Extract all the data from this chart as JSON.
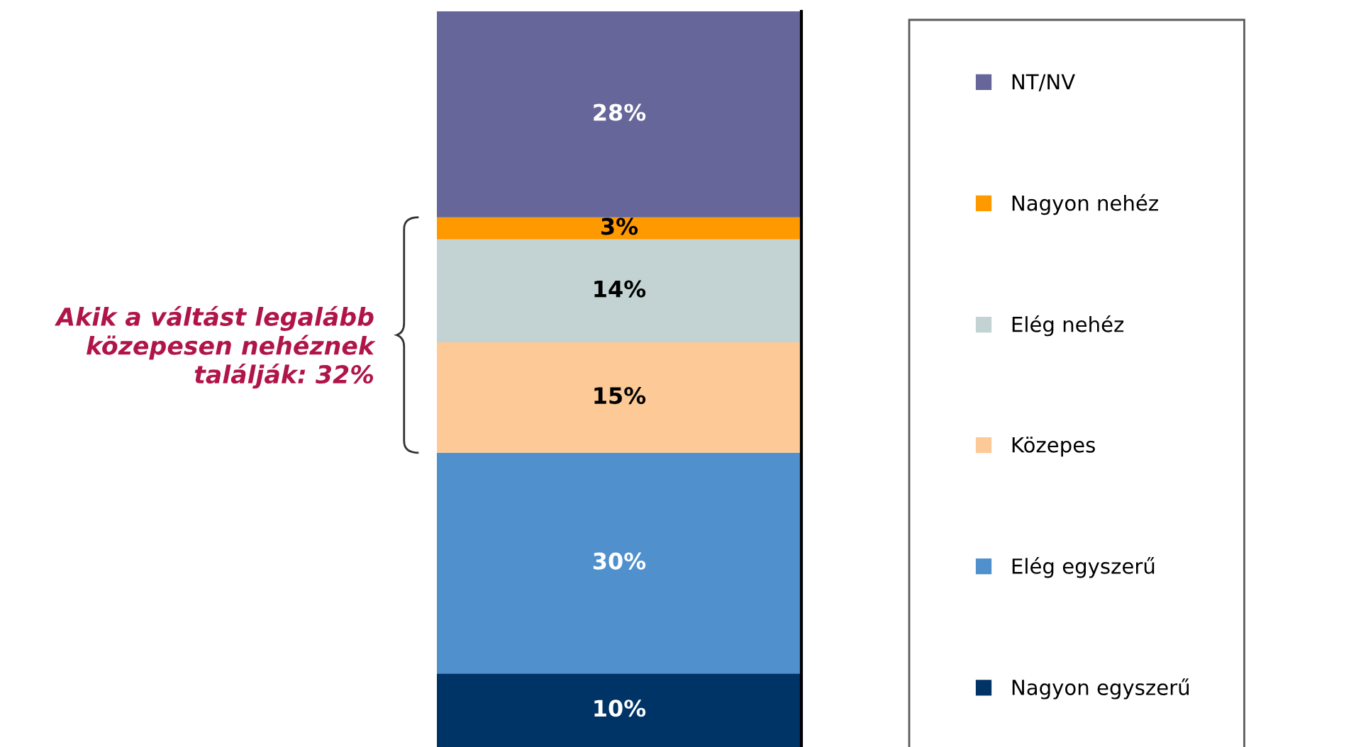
{
  "chart_data": {
    "type": "bar",
    "stacked": true,
    "categories": [
      null
    ],
    "legend": "right",
    "grid": false,
    "annotations": [
      "Akik a váltást legalább közepesen nehéznek találják: 32%"
    ],
    "series": [
      {
        "name": "Nagyon egyszerű",
        "color": "#003366",
        "values": [
          10
        ],
        "value_labels": [
          "10%"
        ]
      },
      {
        "name": "Elég egyszerű",
        "color": "#4f90cd",
        "values": [
          30
        ],
        "value_labels": [
          "30%"
        ]
      },
      {
        "name": "Közepes",
        "color": "#fdc997",
        "values": [
          15
        ],
        "value_labels": [
          "15%"
        ]
      },
      {
        "name": "Elég nehéz",
        "color": "#c3d3d3",
        "values": [
          14
        ],
        "value_labels": [
          "14%"
        ]
      },
      {
        "name": "Nagyon nehéz",
        "color": "#ff9900",
        "values": [
          3
        ],
        "value_labels": [
          "3%"
        ]
      },
      {
        "name": "NT/NV",
        "color": "#66669a",
        "values": [
          28
        ],
        "value_labels": [
          "28%"
        ]
      }
    ]
  }
}
